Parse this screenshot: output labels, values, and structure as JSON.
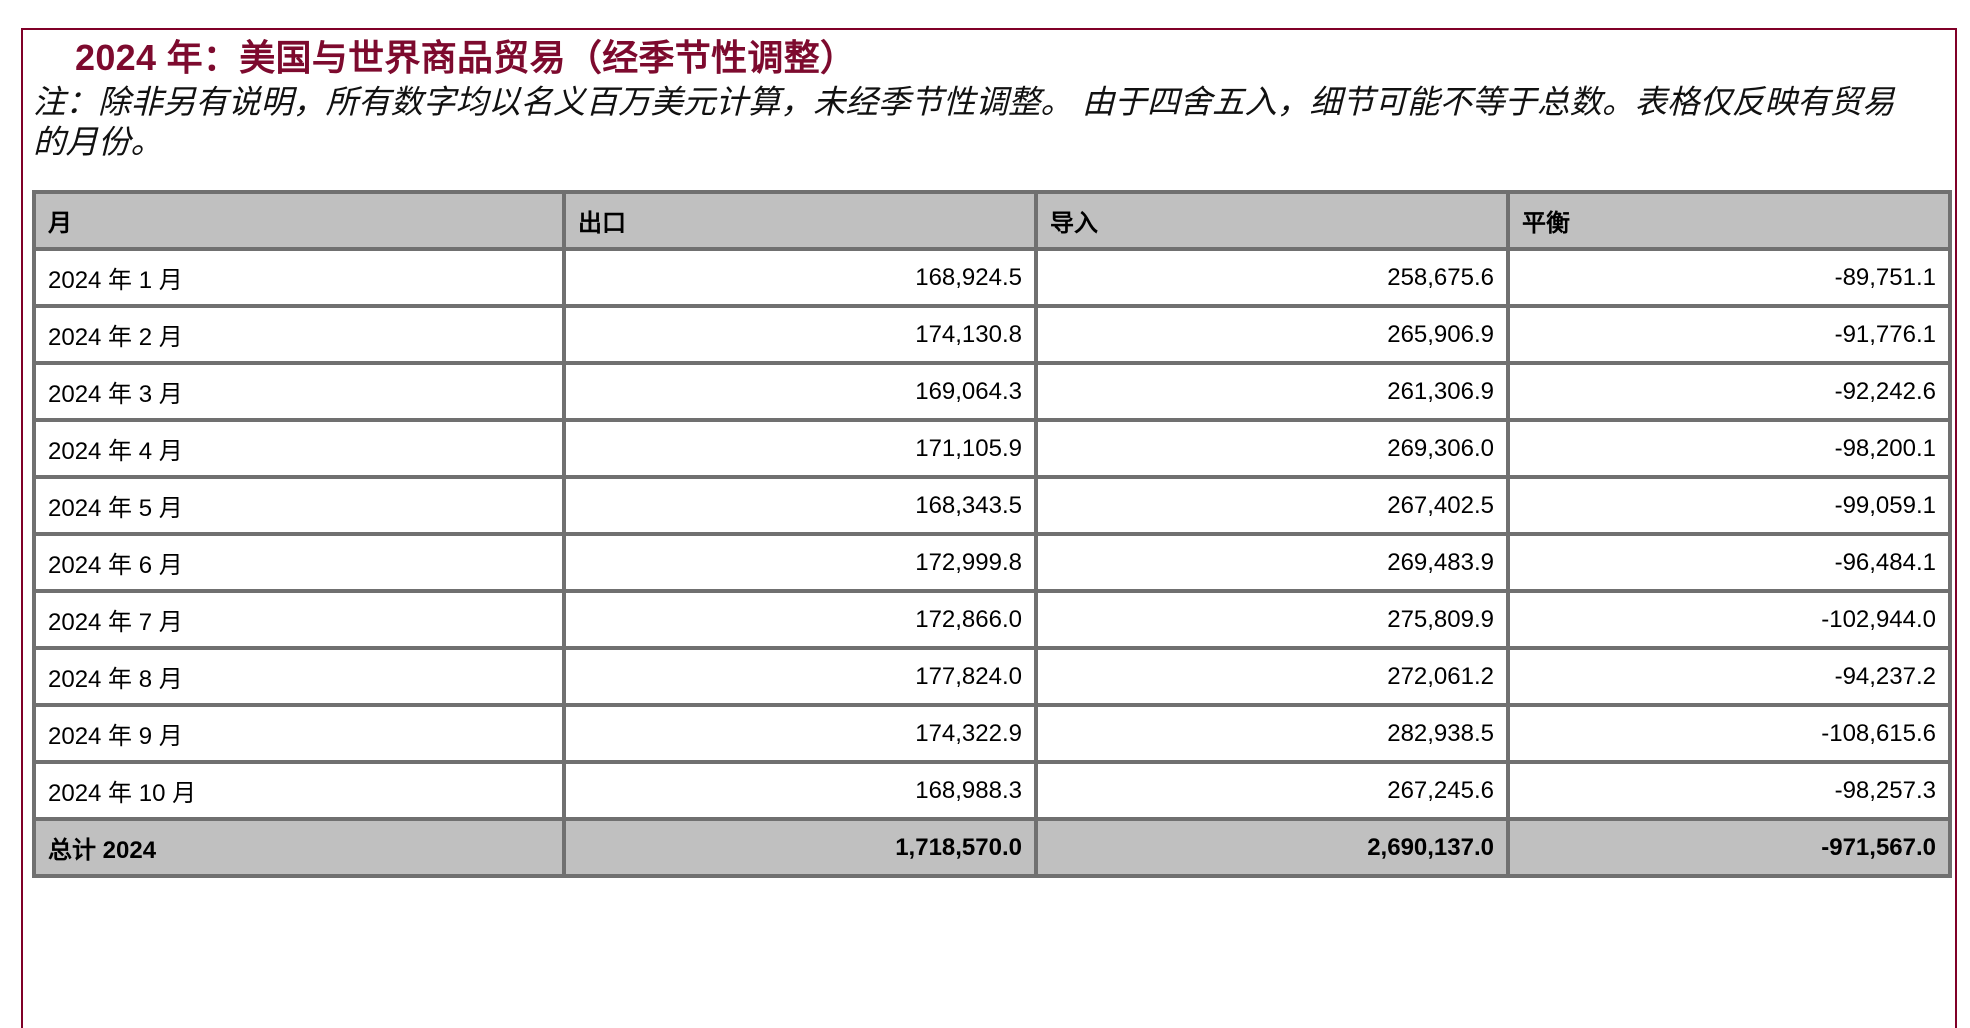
{
  "title": "2024 年：美国与世界商品贸易（经季节性调整）",
  "note": "注：除非另有说明，所有数字均以名义百万美元计算，未经季节性调整。 由于四舍五入，细节可能不等于总数。表格仅反映有贸易的月份。",
  "colors": {
    "accent": "#7d0a2e",
    "border": "#707070",
    "header_bg": "#c0c0c0"
  },
  "table": {
    "headers": [
      "月",
      "出口",
      "导入",
      "平衡"
    ],
    "rows": [
      [
        "2024 年 1 月",
        "168,924.5",
        "258,675.6",
        "-89,751.1"
      ],
      [
        "2024 年 2 月",
        "174,130.8",
        "265,906.9",
        "-91,776.1"
      ],
      [
        "2024 年 3 月",
        "169,064.3",
        "261,306.9",
        "-92,242.6"
      ],
      [
        "2024 年 4 月",
        "171,105.9",
        "269,306.0",
        "-98,200.1"
      ],
      [
        "2024 年 5 月",
        "168,343.5",
        "267,402.5",
        "-99,059.1"
      ],
      [
        "2024 年 6 月",
        "172,999.8",
        "269,483.9",
        "-96,484.1"
      ],
      [
        "2024 年 7 月",
        "172,866.0",
        "275,809.9",
        "-102,944.0"
      ],
      [
        "2024 年 8 月",
        "177,824.0",
        "272,061.2",
        "-94,237.2"
      ],
      [
        "2024 年 9 月",
        "174,322.9",
        "282,938.5",
        "-108,615.6"
      ],
      [
        "2024 年 10 月",
        "168,988.3",
        "267,245.6",
        "-98,257.3"
      ]
    ],
    "total": [
      "总计 2024",
      "1,718,570.0",
      "2,690,137.0",
      "-971,567.0"
    ]
  }
}
